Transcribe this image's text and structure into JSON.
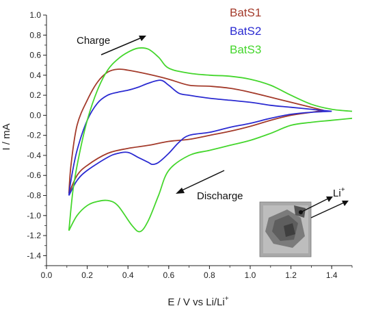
{
  "chart_data": {
    "type": "line",
    "xlabel": "E / V vs Li/Li",
    "xlabel_sup": "+",
    "ylabel": "I / mA",
    "xlim": [
      0.0,
      1.5
    ],
    "ylim": [
      -1.5,
      1.0
    ],
    "xticks": [
      "0.0",
      "0.2",
      "0.4",
      "0.6",
      "0.8",
      "1.0",
      "1.2",
      "1.4"
    ],
    "yticks": [
      "1.0",
      "0.8",
      "0.6",
      "0.4",
      "0.2",
      "0.0",
      "-0.2",
      "-0.4",
      "-0.6",
      "-0.8",
      "-1.0",
      "-1.2",
      "-1.4"
    ],
    "legend_position": "top-right",
    "series": [
      {
        "name": "BatS1",
        "color": "#a33a2a",
        "charge": [
          [
            0.11,
            -0.78
          ],
          [
            0.12,
            -0.5
          ],
          [
            0.15,
            -0.1
          ],
          [
            0.2,
            0.15
          ],
          [
            0.25,
            0.33
          ],
          [
            0.3,
            0.43
          ],
          [
            0.35,
            0.46
          ],
          [
            0.4,
            0.45
          ],
          [
            0.5,
            0.41
          ],
          [
            0.6,
            0.36
          ],
          [
            0.7,
            0.3
          ],
          [
            0.8,
            0.29
          ],
          [
            0.9,
            0.27
          ],
          [
            1.0,
            0.23
          ],
          [
            1.1,
            0.18
          ],
          [
            1.2,
            0.13
          ],
          [
            1.3,
            0.08
          ],
          [
            1.36,
            0.05
          ]
        ],
        "discharge": [
          [
            1.36,
            0.05
          ],
          [
            1.3,
            0.03
          ],
          [
            1.2,
            0.0
          ],
          [
            1.1,
            -0.05
          ],
          [
            1.0,
            -0.11
          ],
          [
            0.9,
            -0.16
          ],
          [
            0.8,
            -0.2
          ],
          [
            0.7,
            -0.24
          ],
          [
            0.6,
            -0.26
          ],
          [
            0.5,
            -0.3
          ],
          [
            0.4,
            -0.33
          ],
          [
            0.3,
            -0.38
          ],
          [
            0.2,
            -0.5
          ],
          [
            0.15,
            -0.6
          ],
          [
            0.11,
            -0.78
          ]
        ]
      },
      {
        "name": "BatS2",
        "color": "#2a2ad1",
        "charge": [
          [
            0.11,
            -0.8
          ],
          [
            0.12,
            -0.65
          ],
          [
            0.15,
            -0.35
          ],
          [
            0.2,
            -0.05
          ],
          [
            0.25,
            0.12
          ],
          [
            0.3,
            0.2
          ],
          [
            0.35,
            0.23
          ],
          [
            0.4,
            0.25
          ],
          [
            0.45,
            0.28
          ],
          [
            0.5,
            0.32
          ],
          [
            0.56,
            0.35
          ],
          [
            0.6,
            0.3
          ],
          [
            0.65,
            0.22
          ],
          [
            0.7,
            0.2
          ],
          [
            0.8,
            0.17
          ],
          [
            0.9,
            0.15
          ],
          [
            1.0,
            0.13
          ],
          [
            1.1,
            0.1
          ],
          [
            1.2,
            0.08
          ],
          [
            1.3,
            0.06
          ],
          [
            1.4,
            0.04
          ]
        ],
        "discharge": [
          [
            1.4,
            0.04
          ],
          [
            1.3,
            0.03
          ],
          [
            1.2,
            0.01
          ],
          [
            1.1,
            -0.03
          ],
          [
            1.0,
            -0.08
          ],
          [
            0.9,
            -0.12
          ],
          [
            0.8,
            -0.17
          ],
          [
            0.7,
            -0.2
          ],
          [
            0.65,
            -0.27
          ],
          [
            0.6,
            -0.38
          ],
          [
            0.55,
            -0.47
          ],
          [
            0.52,
            -0.49
          ],
          [
            0.5,
            -0.47
          ],
          [
            0.45,
            -0.42
          ],
          [
            0.4,
            -0.37
          ],
          [
            0.35,
            -0.38
          ],
          [
            0.3,
            -0.42
          ],
          [
            0.2,
            -0.55
          ],
          [
            0.15,
            -0.65
          ],
          [
            0.11,
            -0.8
          ]
        ]
      },
      {
        "name": "BatS3",
        "color": "#44d62c",
        "charge": [
          [
            0.11,
            -1.15
          ],
          [
            0.13,
            -0.75
          ],
          [
            0.16,
            -0.4
          ],
          [
            0.2,
            -0.05
          ],
          [
            0.25,
            0.25
          ],
          [
            0.3,
            0.45
          ],
          [
            0.35,
            0.56
          ],
          [
            0.4,
            0.63
          ],
          [
            0.45,
            0.67
          ],
          [
            0.5,
            0.66
          ],
          [
            0.55,
            0.58
          ],
          [
            0.6,
            0.47
          ],
          [
            0.7,
            0.42
          ],
          [
            0.8,
            0.4
          ],
          [
            0.9,
            0.39
          ],
          [
            1.0,
            0.36
          ],
          [
            1.1,
            0.3
          ],
          [
            1.2,
            0.2
          ],
          [
            1.3,
            0.11
          ],
          [
            1.4,
            0.06
          ],
          [
            1.5,
            0.04
          ]
        ],
        "discharge": [
          [
            1.5,
            -0.03
          ],
          [
            1.4,
            -0.05
          ],
          [
            1.3,
            -0.07
          ],
          [
            1.2,
            -0.1
          ],
          [
            1.1,
            -0.18
          ],
          [
            1.0,
            -0.25
          ],
          [
            0.9,
            -0.3
          ],
          [
            0.8,
            -0.35
          ],
          [
            0.7,
            -0.4
          ],
          [
            0.6,
            -0.55
          ],
          [
            0.55,
            -0.8
          ],
          [
            0.5,
            -1.05
          ],
          [
            0.46,
            -1.16
          ],
          [
            0.42,
            -1.1
          ],
          [
            0.35,
            -0.9
          ],
          [
            0.3,
            -0.85
          ],
          [
            0.25,
            -0.86
          ],
          [
            0.2,
            -0.9
          ],
          [
            0.15,
            -1.0
          ],
          [
            0.11,
            -1.15
          ]
        ]
      }
    ]
  },
  "annotations": {
    "charge": "Charge",
    "discharge": "Discharge",
    "li_ion": "Li",
    "li_ion_sup": "+"
  }
}
